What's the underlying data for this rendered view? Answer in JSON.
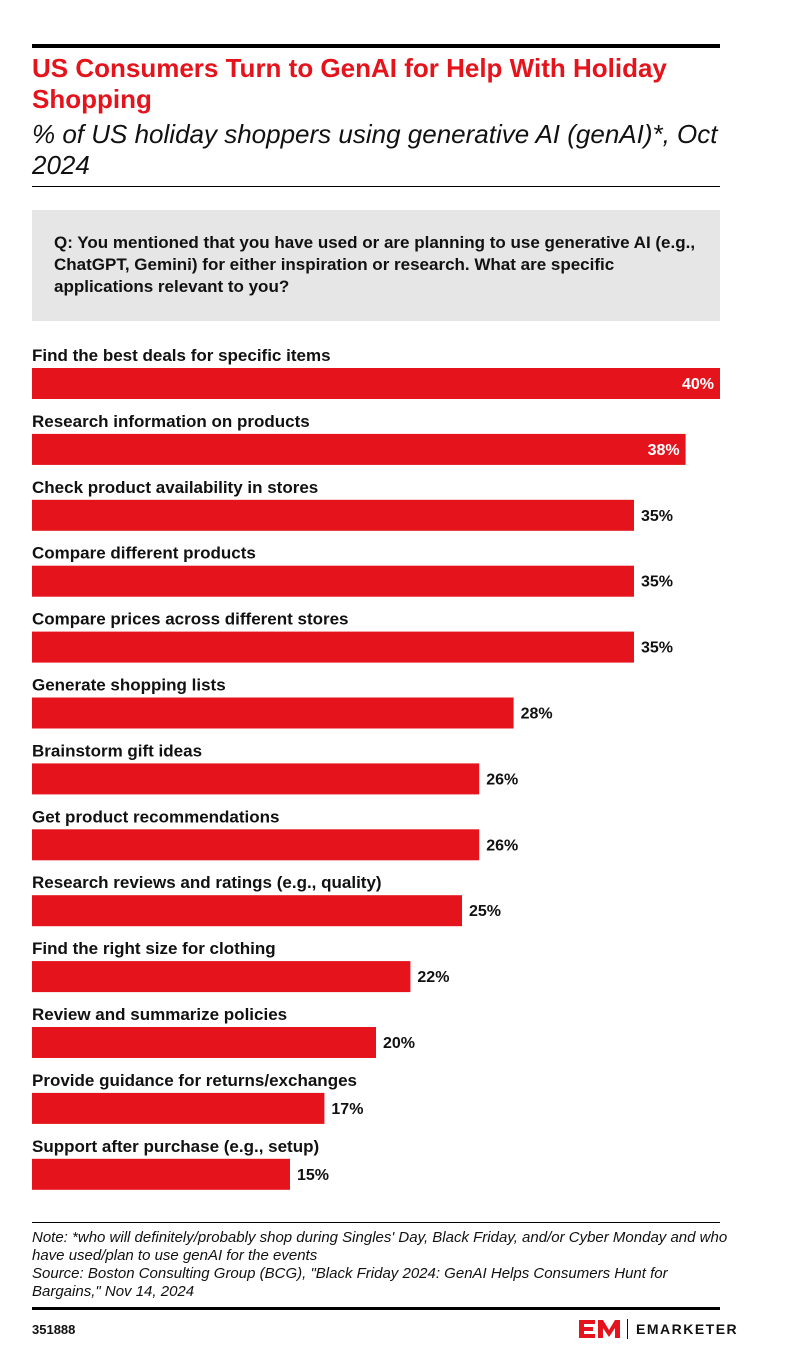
{
  "header": {
    "title": "US Consumers Turn to GenAI for Help With Holiday Shopping",
    "subtitle": "% of US holiday shoppers using generative AI (genAI)*, Oct 2024"
  },
  "question": "Q: You mentioned that you have used or are planning to use generative AI (e.g., ChatGPT, Gemini) for either inspiration or research. What are specific applications relevant to you?",
  "chart_data": {
    "type": "bar",
    "orientation": "horizontal",
    "categories": [
      "Find the best deals for specific items",
      "Research information on products",
      "Check product availability in stores",
      "Compare different products",
      "Compare prices across different stores",
      "Generate shopping lists",
      "Brainstorm gift ideas",
      "Get product recommendations",
      "Research reviews and ratings (e.g., quality)",
      "Find the right size for clothing",
      "Review and summarize policies",
      "Provide guidance for returns/exchanges",
      "Support after purchase (e.g., setup)"
    ],
    "values": [
      40,
      38,
      35,
      35,
      35,
      28,
      26,
      26,
      25,
      22,
      20,
      17,
      15
    ],
    "value_labels": [
      "40%",
      "38%",
      "35%",
      "35%",
      "35%",
      "28%",
      "26%",
      "26%",
      "25%",
      "22%",
      "20%",
      "17%",
      "15%"
    ],
    "xlim": [
      0,
      40
    ],
    "bar_color": "#e4131c",
    "grid": false,
    "legend": "none"
  },
  "footer": {
    "note": "Note: *who will definitely/probably shop during Singles' Day, Black Friday, and/or Cyber Monday and who have used/plan to use genAI for the events",
    "source": "Source: Boston Consulting Group (BCG), \"Black Friday 2024: GenAI Helps Consumers Hunt for Bargains,\" Nov 14, 2024",
    "chart_id": "351888",
    "brand": "EMARKETER"
  },
  "colors": {
    "accent": "#e4131c",
    "question_bg": "#e6e6e6",
    "text": "#111111"
  }
}
